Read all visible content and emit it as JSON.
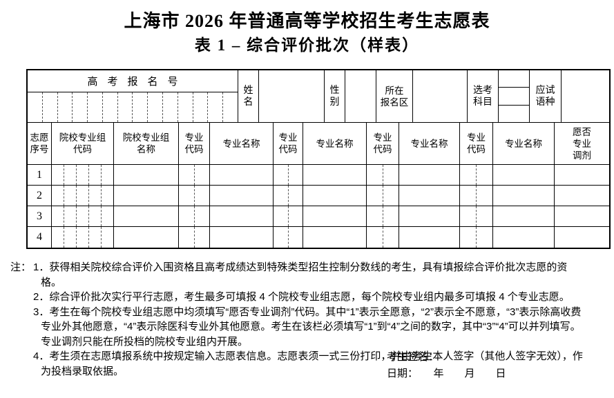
{
  "page": {
    "title": "上海市 2026 年普通高等学校招生考生志愿表",
    "subtitle": "表 1 – 综合评价批次（样表）"
  },
  "info": {
    "reg_no_label": "高考报名号",
    "name_label": "姓\n名",
    "gender_label": "性\n别",
    "district_label": "所在\n报名区",
    "subjects_label": "选考\n科目",
    "language_label": "应试\n语种"
  },
  "vt": {
    "headers": {
      "seq": "志愿\n序号",
      "group_code": "院校专业组\n代码",
      "group_name": "院校专业组\n名称",
      "major_code": "专业\n代码",
      "major_name": "专业名称",
      "adjustment": "愿否\n专业\n调剂"
    },
    "rows": [
      {
        "seq": "1"
      },
      {
        "seq": "2"
      },
      {
        "seq": "3"
      },
      {
        "seq": "4"
      }
    ]
  },
  "notes": {
    "prefix": "注：",
    "items": [
      "1．获得相关院校综合评价入围资格且高考成绩达到特殊类型招生控制分数线的考生，具有填报综合评价批次志愿的资格。",
      "2．综合评价批次实行平行志愿，考生最多可填报 4 个院校专业组志愿，每个院校专业组内最多可填报 4 个专业志愿。",
      "3．考生在每个院校专业组志愿中均须填写“愿否专业调剂”代码。其中“1”表示全愿意，“2”表示全不愿意，“3”表示除高收费专业外其他愿意，“4”表示除医科专业外其他愿意。考生在该栏必须填写“1”到“4”之间的数字，其中“3”“4”可以并列填写。专业调剂只能在所投档的院校专业组内开展。",
      "4．考生须在志愿填报系统中按规定输入志愿表信息。志愿表须一式三份打印，并由考生本人签字（其他人签字无效），作为投档录取依据。"
    ]
  },
  "signature": {
    "sign_label": "考生签名：",
    "date_line": "日期：　　年　　月　　日"
  },
  "colors": {
    "ink": "#000000",
    "paper": "#ffffff"
  }
}
